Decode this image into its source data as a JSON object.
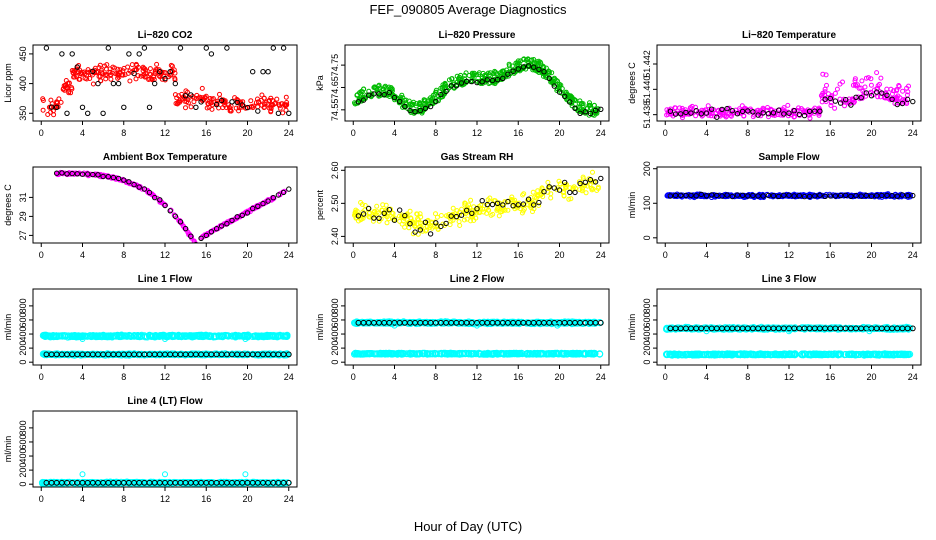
{
  "title": "FEF_090805  Average Diagnostics",
  "xlabel": "Hour of Day (UTC)",
  "chart_data": [
    {
      "type": "scatter",
      "title": "Li−820 CO2",
      "ylabel": "Licor ppm",
      "ylim": [
        337,
        465
      ],
      "yticks": [
        {
          "v": 350,
          "label": "350"
        },
        {
          "v": 400,
          "label": "400"
        },
        {
          "v": 450,
          "label": "450"
        }
      ],
      "xlim": [
        -0.8,
        24.8
      ],
      "xticks": [
        0,
        4,
        8,
        12,
        16,
        20,
        24
      ],
      "series": [
        {
          "name": "raw",
          "color": "#ff0000"
        },
        {
          "name": "average",
          "color": "#000000"
        }
      ]
    },
    {
      "type": "scatter",
      "title": "Li−820 Pressure",
      "ylabel": "kPa",
      "ylim": [
        74.5,
        74.84
      ],
      "yticks": [
        {
          "v": 74.55,
          "label": "74.55"
        },
        {
          "v": 74.65,
          "label": "74.65"
        },
        {
          "v": 74.75,
          "label": "74.75"
        }
      ],
      "xlim": [
        -0.8,
        24.8
      ],
      "xticks": [
        0,
        4,
        8,
        12,
        16,
        20,
        24
      ],
      "series": [
        {
          "name": "raw",
          "color": "#00bb00"
        },
        {
          "name": "average",
          "color": "#000000"
        }
      ]
    },
    {
      "type": "scatter",
      "title": "Li−820 Temperature",
      "ylabel": "degrees C",
      "ylim": [
        51.4375,
        51.4435
      ],
      "yticks": [
        {
          "v": 51.438,
          "label": "51.438"
        },
        {
          "v": 51.44,
          "label": "51.440"
        },
        {
          "v": 51.442,
          "label": "51.442"
        }
      ],
      "xlim": [
        -0.8,
        24.8
      ],
      "xticks": [
        0,
        4,
        8,
        12,
        16,
        20,
        24
      ],
      "series": [
        {
          "name": "raw",
          "color": "#ff00ff"
        },
        {
          "name": "average",
          "color": "#000000"
        }
      ]
    },
    {
      "type": "scatter",
      "title": "Ambient Box Temperature",
      "ylabel": "degrees C",
      "ylim": [
        26.2,
        34.2
      ],
      "yticks": [
        {
          "v": 27,
          "label": "27"
        },
        {
          "v": 29,
          "label": "29"
        },
        {
          "v": 31,
          "label": "31"
        }
      ],
      "xlim": [
        -0.8,
        24.8
      ],
      "xticks": [
        0,
        4,
        8,
        12,
        16,
        20,
        24
      ],
      "series": [
        {
          "name": "raw",
          "color": "#ff00ff"
        },
        {
          "name": "average",
          "color": "#000000"
        }
      ]
    },
    {
      "type": "scatter",
      "title": "Gas Stream RH",
      "ylabel": "percent",
      "ylim": [
        2.38,
        2.61
      ],
      "yticks": [
        {
          "v": 2.4,
          "label": "2.40"
        },
        {
          "v": 2.5,
          "label": "2.50"
        },
        {
          "v": 2.6,
          "label": "2.60"
        }
      ],
      "xlim": [
        -0.8,
        24.8
      ],
      "xticks": [
        0,
        4,
        8,
        12,
        16,
        20,
        24
      ],
      "series": [
        {
          "name": "raw",
          "color": "#ffff00"
        },
        {
          "name": "average",
          "color": "#000000"
        }
      ]
    },
    {
      "type": "scatter",
      "title": "Sample Flow",
      "ylabel": "ml/min",
      "ylim": [
        -15,
        205
      ],
      "yticks": [
        {
          "v": 0,
          "label": "0"
        },
        {
          "v": 100,
          "label": "100"
        },
        {
          "v": 200,
          "label": "200"
        }
      ],
      "xlim": [
        -0.8,
        24.8
      ],
      "xticks": [
        0,
        4,
        8,
        12,
        16,
        20,
        24
      ],
      "series": [
        {
          "name": "raw",
          "color": "#0000ff"
        },
        {
          "name": "average",
          "color": "#000000"
        }
      ]
    },
    {
      "type": "scatter",
      "title": "Line 1 Flow",
      "ylabel": "ml/min",
      "ylim": [
        -40,
        1040
      ],
      "yticks": [
        {
          "v": 0,
          "label": "0"
        },
        {
          "v": 200,
          "label": "200"
        },
        {
          "v": 400,
          "label": "400"
        },
        {
          "v": 600,
          "label": "600"
        },
        {
          "v": 800,
          "label": "800"
        }
      ],
      "xlim": [
        -0.8,
        24.8
      ],
      "xticks": [
        0,
        4,
        8,
        12,
        16,
        20,
        24
      ],
      "series": [
        {
          "name": "raw",
          "color": "#00ffff"
        },
        {
          "name": "average",
          "color": "#000000"
        }
      ]
    },
    {
      "type": "scatter",
      "title": "Line 2 Flow",
      "ylabel": "ml/min",
      "ylim": [
        -40,
        1040
      ],
      "yticks": [
        {
          "v": 0,
          "label": "0"
        },
        {
          "v": 200,
          "label": "200"
        },
        {
          "v": 400,
          "label": "400"
        },
        {
          "v": 600,
          "label": "600"
        },
        {
          "v": 800,
          "label": "800"
        }
      ],
      "xlim": [
        -0.8,
        24.8
      ],
      "xticks": [
        0,
        4,
        8,
        12,
        16,
        20,
        24
      ],
      "series": [
        {
          "name": "raw",
          "color": "#00ffff"
        },
        {
          "name": "average",
          "color": "#000000"
        }
      ]
    },
    {
      "type": "scatter",
      "title": "Line 3 Flow",
      "ylabel": "ml/min",
      "ylim": [
        -40,
        1040
      ],
      "yticks": [
        {
          "v": 0,
          "label": "0"
        },
        {
          "v": 200,
          "label": "200"
        },
        {
          "v": 400,
          "label": "400"
        },
        {
          "v": 600,
          "label": "600"
        },
        {
          "v": 800,
          "label": "800"
        }
      ],
      "xlim": [
        -0.8,
        24.8
      ],
      "xticks": [
        0,
        4,
        8,
        12,
        16,
        20,
        24
      ],
      "series": [
        {
          "name": "raw",
          "color": "#00ffff"
        },
        {
          "name": "average",
          "color": "#000000"
        }
      ]
    },
    {
      "type": "scatter",
      "title": "Line 4 (LT) Flow",
      "ylabel": "ml/min",
      "ylim": [
        -40,
        1040
      ],
      "yticks": [
        {
          "v": 0,
          "label": "0"
        },
        {
          "v": 200,
          "label": "200"
        },
        {
          "v": 400,
          "label": "400"
        },
        {
          "v": 600,
          "label": "600"
        },
        {
          "v": 800,
          "label": "800"
        }
      ],
      "xlim": [
        -0.8,
        24.8
      ],
      "xticks": [
        0,
        4,
        8,
        12,
        16,
        20,
        24
      ],
      "series": [
        {
          "name": "raw",
          "color": "#00ffff"
        },
        {
          "name": "average",
          "color": "#000000"
        }
      ]
    }
  ]
}
